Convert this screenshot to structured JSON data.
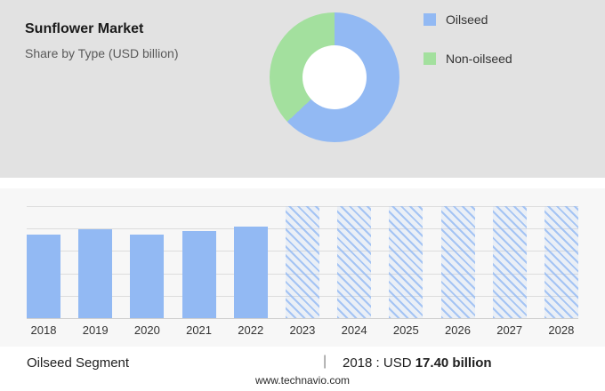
{
  "header": {
    "title": "Sunflower Market",
    "subtitle": "Share by Type (USD billion)"
  },
  "legend": [
    {
      "label": "Oilseed",
      "color": "#92b9f3"
    },
    {
      "label": "Non-oilseed",
      "color": "#a3e09e"
    }
  ],
  "chart_data": [
    {
      "type": "pie",
      "title": "Share by Type (USD billion)",
      "labels": [
        "Oilseed",
        "Non-oilseed"
      ],
      "values": [
        63,
        37
      ],
      "colors": [
        "#92b9f3",
        "#a3e09e"
      ],
      "donut": true,
      "legend_position": "right"
    },
    {
      "type": "bar",
      "categories": [
        "2018",
        "2019",
        "2020",
        "2021",
        "2022",
        "2023",
        "2024",
        "2025",
        "2026",
        "2027",
        "2028"
      ],
      "values": [
        17.4,
        18.3,
        17.4,
        18.1,
        19.0,
        23.2,
        23.2,
        23.2,
        23.2,
        23.2,
        23.2
      ],
      "heights_pct": [
        75,
        79,
        75,
        78,
        82,
        100,
        100,
        100,
        100,
        100,
        100
      ],
      "forecast_from_index": 5,
      "bar_color": "#92b9f3",
      "grid": true,
      "ylim": [
        0,
        23.2
      ],
      "xlabel": "",
      "ylabel": ""
    }
  ],
  "footer": {
    "segment_label": "Oilseed Segment",
    "separator": "|",
    "value_prefix": "2018 : USD ",
    "value_bold": "17.40 billion",
    "website": "www.technavio.com"
  }
}
